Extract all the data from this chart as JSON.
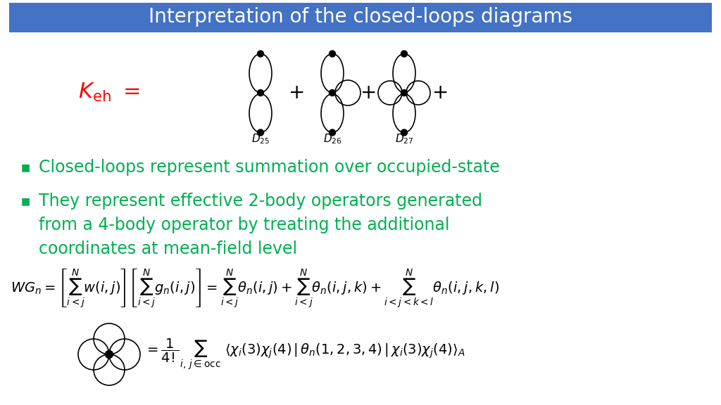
{
  "title": "Interpretation of the closed-loops diagrams",
  "title_bg": "#4472C4",
  "title_color": "white",
  "title_fontsize": 20,
  "bullet_color": "#00B050",
  "bullet1": "Closed-loops represent summation over occupied-state",
  "bullet2_line1": "They represent effective 2-body operators generated",
  "bullet2_line2": "from a 4-body operator by treating the additional",
  "bullet2_line3": "coordinates at mean-field level",
  "keh_color": "#FF0000",
  "bg_color": "#FFFFFF",
  "formula_color": "#000000"
}
